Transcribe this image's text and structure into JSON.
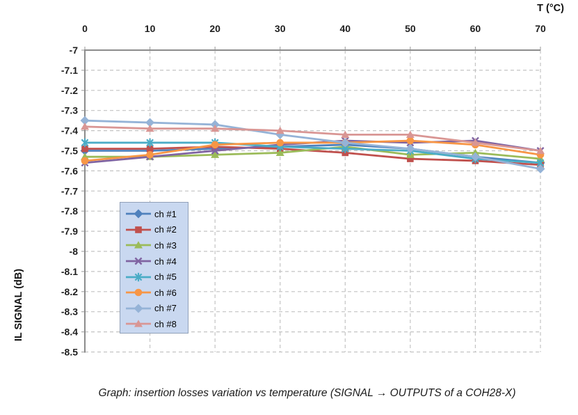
{
  "figure": {
    "caption": "Graph: insertion losses variation vs temperature (SIGNAL → OUTPUTS of a COH28-X)"
  },
  "chart_data": {
    "type": "line",
    "title": "",
    "xlabel": "T (°C)",
    "ylabel": "IL SIGNAL (dB)",
    "x": [
      0,
      10,
      20,
      30,
      40,
      50,
      60,
      70
    ],
    "xticks": [
      "0",
      "10",
      "20",
      "30",
      "40",
      "50",
      "60",
      "70"
    ],
    "yticks": [
      "-7",
      "-7.1",
      "-7.2",
      "-7.3",
      "-7.4",
      "-7.5",
      "-7.6",
      "-7.7",
      "-7.8",
      "-7.9",
      "-8",
      "-8.1",
      "-8.2",
      "-8.3",
      "-8.4",
      "-8.5"
    ],
    "xlim": [
      0,
      70
    ],
    "ylim": [
      -7,
      -8.5
    ],
    "grid": "dashed",
    "legend_position": "inside-left",
    "colors": {
      "axis": "#8C8C8C",
      "gridline": "#C3C3C3",
      "tick_text": "#1F1F1F",
      "legend_fill": "#C9D8F0",
      "legend_border": "#90A0B8"
    },
    "series": [
      {
        "name": "ch #1",
        "marker": "diamond",
        "color": "#4F81BD",
        "values": [
          -7.5,
          -7.5,
          -7.49,
          -7.48,
          -7.47,
          -7.49,
          -7.53,
          -7.56
        ]
      },
      {
        "name": "ch #2",
        "marker": "square",
        "color": "#C0504D",
        "values": [
          -7.49,
          -7.49,
          -7.48,
          -7.49,
          -7.51,
          -7.54,
          -7.55,
          -7.57
        ]
      },
      {
        "name": "ch #3",
        "marker": "triangle",
        "color": "#9BBB59",
        "values": [
          -7.53,
          -7.53,
          -7.52,
          -7.51,
          -7.48,
          -7.52,
          -7.51,
          -7.54
        ]
      },
      {
        "name": "ch #4",
        "marker": "x",
        "color": "#8064A2",
        "values": [
          -7.56,
          -7.53,
          -7.5,
          -7.47,
          -7.45,
          -7.46,
          -7.45,
          -7.5
        ]
      },
      {
        "name": "ch #5",
        "marker": "star",
        "color": "#4BACC6",
        "values": [
          -7.46,
          -7.46,
          -7.46,
          -7.48,
          -7.49,
          -7.5,
          -7.54,
          -7.56
        ]
      },
      {
        "name": "ch #6",
        "marker": "circle",
        "color": "#F79646",
        "values": [
          -7.55,
          -7.52,
          -7.47,
          -7.46,
          -7.46,
          -7.45,
          -7.47,
          -7.52
        ]
      },
      {
        "name": "ch #7",
        "marker": "diamond",
        "color": "#95B3D7",
        "values": [
          -7.35,
          -7.36,
          -7.37,
          -7.42,
          -7.46,
          -7.49,
          -7.53,
          -7.59
        ]
      },
      {
        "name": "ch #8",
        "marker": "triangle",
        "color": "#D99694",
        "values": [
          -7.38,
          -7.39,
          -7.39,
          -7.4,
          -7.42,
          -7.42,
          -7.46,
          -7.5
        ]
      }
    ]
  }
}
